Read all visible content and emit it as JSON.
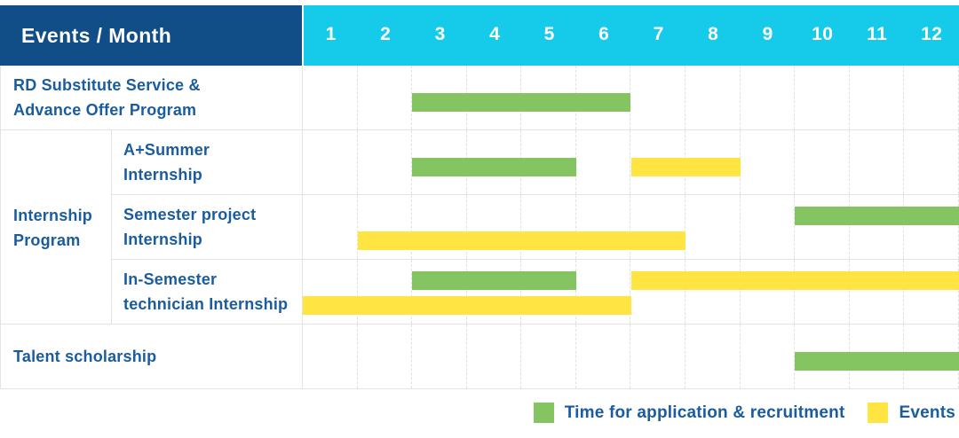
{
  "header": {
    "label_column": "Events / Month",
    "months": [
      "1",
      "2",
      "3",
      "4",
      "5",
      "6",
      "7",
      "8",
      "9",
      "10",
      "11",
      "12"
    ]
  },
  "colors": {
    "header_bg": "#114E87",
    "month_header_bg": "#15CBE9",
    "application_green": "#85C561",
    "event_yellow": "#FFE442",
    "label_text": "#1A5C9E",
    "grid_line": "#E3E3E3",
    "grid_line_dashed": "#E0E0E0"
  },
  "group_label": {
    "text": "Internship Program",
    "lines": [
      "Internship",
      "Program"
    ]
  },
  "rows": [
    {
      "label": "RD Substitute Service & Advance Offer Program",
      "label_lines": [
        "RD Substitute Service &",
        "Advance Offer Program"
      ],
      "group": null,
      "bars": [
        {
          "kind": "application",
          "start_month": 3,
          "end_month": 6,
          "lane": "center"
        }
      ]
    },
    {
      "label": "A+Summer Internship",
      "label_lines": [
        "A+Summer",
        "Internship"
      ],
      "group": "Internship Program",
      "bars": [
        {
          "kind": "application",
          "start_month": 3,
          "end_month": 5,
          "lane": "center"
        },
        {
          "kind": "event",
          "start_month": 7,
          "end_month": 8,
          "lane": "center"
        }
      ]
    },
    {
      "label": "Semester project Internship",
      "label_lines": [
        "Semester project",
        "Internship"
      ],
      "group": "Internship Program",
      "bars": [
        {
          "kind": "application",
          "start_month": 10,
          "end_month": 12,
          "lane": "top"
        },
        {
          "kind": "event",
          "start_month": 2,
          "end_month": 7,
          "lane": "bottom"
        }
      ]
    },
    {
      "label": "In-Semester technician Internship",
      "label_lines": [
        "In-Semester",
        "technician Internship"
      ],
      "group": "Internship Program",
      "bars": [
        {
          "kind": "application",
          "start_month": 3,
          "end_month": 5,
          "lane": "top"
        },
        {
          "kind": "event",
          "start_month": 7,
          "end_month": 12,
          "lane": "top"
        },
        {
          "kind": "event",
          "start_month": 1,
          "end_month": 6,
          "lane": "bottom"
        }
      ]
    },
    {
      "label": "Talent scholarship",
      "label_lines": [
        "Talent scholarship"
      ],
      "group": null,
      "bars": [
        {
          "kind": "application",
          "start_month": 10,
          "end_month": 12,
          "lane": "center"
        }
      ]
    }
  ],
  "legend": [
    {
      "kind": "application",
      "label": "Time for application & recruitment"
    },
    {
      "kind": "event",
      "label": "Events"
    }
  ],
  "chart_data": {
    "type": "gantt",
    "title": "Events / Month",
    "x_unit": "month",
    "x_ticks": [
      1,
      2,
      3,
      4,
      5,
      6,
      7,
      8,
      9,
      10,
      11,
      12
    ],
    "x_range": [
      1,
      12
    ],
    "grid": true,
    "legend_position": "bottom-right",
    "legend": {
      "application": "Time for application & recruitment",
      "event": "Events"
    },
    "tasks": [
      {
        "name": "RD Substitute Service & Advance Offer Program",
        "group": null,
        "bars": [
          {
            "kind": "application",
            "start_month": 3,
            "end_month": 6
          }
        ]
      },
      {
        "name": "A+Summer Internship",
        "group": "Internship Program",
        "bars": [
          {
            "kind": "application",
            "start_month": 3,
            "end_month": 5
          },
          {
            "kind": "event",
            "start_month": 7,
            "end_month": 8
          }
        ]
      },
      {
        "name": "Semester project Internship",
        "group": "Internship Program",
        "bars": [
          {
            "kind": "application",
            "start_month": 10,
            "end_month": 12
          },
          {
            "kind": "event",
            "start_month": 2,
            "end_month": 7
          }
        ]
      },
      {
        "name": "In-Semester technician Internship",
        "group": "Internship Program",
        "bars": [
          {
            "kind": "application",
            "start_month": 3,
            "end_month": 5
          },
          {
            "kind": "event",
            "start_month": 7,
            "end_month": 12
          },
          {
            "kind": "event",
            "start_month": 1,
            "end_month": 6
          }
        ]
      },
      {
        "name": "Talent scholarship",
        "group": null,
        "bars": [
          {
            "kind": "application",
            "start_month": 10,
            "end_month": 12
          }
        ]
      }
    ]
  }
}
